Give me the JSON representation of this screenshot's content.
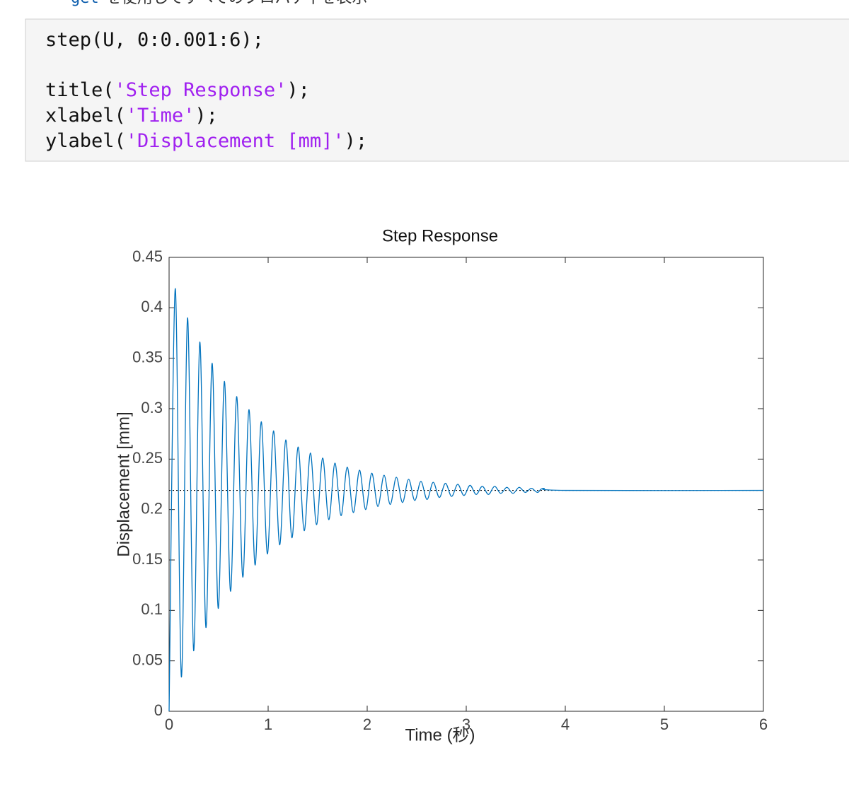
{
  "intro": [
    "get",
    "を使用してすべてのプロパティを表示"
  ],
  "code": [
    [
      {
        "text": "step(U, 0:0.001:6);",
        "kind": "plain"
      }
    ],
    [
      {
        "text": "title(",
        "kind": "plain"
      },
      {
        "text": "'Step Response'",
        "kind": "string"
      },
      {
        "text": ");",
        "kind": "plain"
      }
    ],
    [
      {
        "text": "xlabel(",
        "kind": "plain"
      },
      {
        "text": "'Time'",
        "kind": "string"
      },
      {
        "text": ");",
        "kind": "plain"
      }
    ],
    [
      {
        "text": "ylabel(",
        "kind": "plain"
      },
      {
        "text": "'Displacement [mm]'",
        "kind": "string"
      },
      {
        "text": ");",
        "kind": "plain"
      }
    ]
  ],
  "chart_data": {
    "type": "line",
    "title": "Step Response",
    "x_label": "Time (秒)",
    "y_label": "Displacement [mm]",
    "color": "#0072bd",
    "x": [
      0,
      0.062,
      0.124,
      0.186,
      0.248,
      0.31,
      0.372,
      0.434,
      0.496,
      0.558,
      0.62,
      0.682,
      0.744,
      0.806,
      0.868,
      0.93,
      0.992,
      1.054,
      1.116,
      1.178,
      1.24,
      1.302,
      1.364,
      1.426,
      1.488,
      1.55,
      1.612,
      1.674,
      1.736,
      1.798,
      1.86,
      1.922,
      1.984,
      2.046,
      2.108,
      2.17,
      2.232,
      2.294,
      2.356,
      2.418,
      2.48,
      2.542,
      2.604,
      2.666,
      2.728,
      2.79,
      2.852,
      2.914,
      2.976,
      3.038,
      3.1,
      3.162,
      3.224,
      3.286,
      3.348,
      3.41,
      3.472,
      3.534,
      3.596,
      3.658,
      3.72,
      3.782,
      4,
      6
    ],
    "values": [
      0,
      0.419,
      0.034,
      0.39,
      0.06,
      0.366,
      0.083,
      0.345,
      0.102,
      0.327,
      0.119,
      0.312,
      0.133,
      0.299,
      0.145,
      0.287,
      0.156,
      0.278,
      0.165,
      0.269,
      0.172,
      0.262,
      0.179,
      0.256,
      0.185,
      0.251,
      0.19,
      0.246,
      0.194,
      0.242,
      0.197,
      0.239,
      0.2,
      0.236,
      0.203,
      0.234,
      0.205,
      0.232,
      0.207,
      0.23,
      0.209,
      0.228,
      0.21,
      0.227,
      0.212,
      0.226,
      0.213,
      0.225,
      0.214,
      0.224,
      0.215,
      0.223,
      0.215,
      0.223,
      0.216,
      0.222,
      0.216,
      0.222,
      0.217,
      0.221,
      0.217,
      0.221,
      0.219,
      0.219
    ],
    "steady_state": 0.219,
    "xlim": [
      0,
      6
    ],
    "ylim": [
      0,
      0.45
    ],
    "xticks": [
      0,
      1,
      2,
      3,
      4,
      5,
      6
    ],
    "yticks": [
      0,
      0.05,
      0.1,
      0.15,
      0.2,
      0.25,
      0.3,
      0.35,
      0.4,
      0.45
    ],
    "grid": false
  }
}
